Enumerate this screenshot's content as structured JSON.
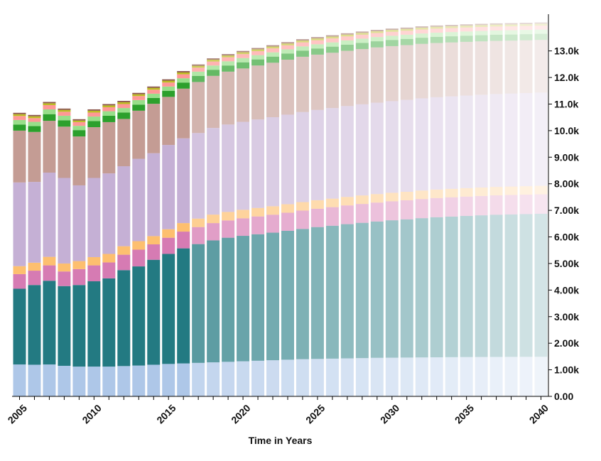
{
  "chart_data": {
    "type": "bar",
    "stacked": true,
    "xlabel": "Time in Years",
    "ylabel": "",
    "ylim": [
      0,
      14000
    ],
    "y_ticks": [
      0,
      1000,
      2000,
      3000,
      4000,
      5000,
      6000,
      7000,
      8000,
      9000,
      10000,
      11000,
      12000,
      13000
    ],
    "y_tick_labels": [
      "0.00",
      "1.00k",
      "2.00k",
      "3.00k",
      "4.00k",
      "5.00k",
      "6.00k",
      "7.00k",
      "8.00k",
      "9.00k",
      "10.0k",
      "11.0k",
      "12.0k",
      "13.0k"
    ],
    "x_tick_labels": [
      {
        "year": 2005,
        "label": "2005"
      },
      {
        "year": 2010,
        "label": "2010"
      },
      {
        "year": 2015,
        "label": "2015"
      },
      {
        "year": 2020,
        "label": "2020"
      },
      {
        "year": 2025,
        "label": "2025"
      },
      {
        "year": 2030,
        "label": "2030"
      },
      {
        "year": 2035,
        "label": "2035"
      },
      {
        "year": 2040,
        "label": "2040"
      }
    ],
    "grid": false,
    "legend": "none",
    "historical_last_year": 2016,
    "categories": [
      2005,
      2006,
      2007,
      2008,
      2009,
      2010,
      2011,
      2012,
      2013,
      2014,
      2015,
      2016,
      2017,
      2018,
      2019,
      2020,
      2021,
      2022,
      2023,
      2024,
      2025,
      2026,
      2027,
      2028,
      2029,
      2030,
      2031,
      2032,
      2033,
      2034,
      2035,
      2036,
      2037,
      2038,
      2039,
      2040
    ],
    "series": [
      {
        "color": "#aec7e8",
        "values": [
          1200,
          1190,
          1200,
          1150,
          1120,
          1120,
          1120,
          1140,
          1160,
          1190,
          1220,
          1240,
          1260,
          1280,
          1300,
          1320,
          1340,
          1360,
          1380,
          1400,
          1410,
          1420,
          1430,
          1440,
          1450,
          1455,
          1460,
          1465,
          1470,
          1475,
          1480,
          1482,
          1484,
          1486,
          1488,
          1490
        ]
      },
      {
        "color": "#237a82",
        "values": [
          2850,
          3000,
          3150,
          3000,
          3070,
          3210,
          3320,
          3610,
          3730,
          3950,
          4140,
          4330,
          4470,
          4590,
          4670,
          4720,
          4760,
          4800,
          4850,
          4900,
          4960,
          5000,
          5050,
          5090,
          5130,
          5170,
          5200,
          5240,
          5270,
          5290,
          5310,
          5330,
          5350,
          5360,
          5370,
          5380
        ]
      },
      {
        "color": "#d67bb3",
        "values": [
          550,
          540,
          580,
          550,
          600,
          600,
          600,
          580,
          630,
          580,
          610,
          630,
          640,
          650,
          650,
          660,
          670,
          675,
          680,
          690,
          690,
          700,
          705,
          710,
          712,
          715,
          718,
          720,
          722,
          724,
          726,
          728,
          729,
          730,
          731,
          732
        ]
      },
      {
        "color": "#fdbf6f",
        "values": [
          300,
          300,
          320,
          300,
          300,
          310,
          320,
          320,
          320,
          310,
          320,
          320,
          320,
          320,
          320,
          320,
          320,
          320,
          320,
          320,
          320,
          320,
          320,
          320,
          320,
          320,
          320,
          320,
          320,
          320,
          320,
          320,
          320,
          320,
          320,
          320
        ]
      },
      {
        "color": "#c5b0d5",
        "values": [
          3150,
          3040,
          3170,
          3220,
          2850,
          2980,
          3030,
          3010,
          3100,
          3120,
          3170,
          3190,
          3220,
          3260,
          3290,
          3310,
          3330,
          3350,
          3370,
          3390,
          3400,
          3410,
          3420,
          3430,
          3440,
          3450,
          3460,
          3470,
          3475,
          3480,
          3485,
          3490,
          3495,
          3500,
          3505,
          3510
        ]
      },
      {
        "color": "#c49c94",
        "values": [
          1950,
          1880,
          1950,
          1930,
          1840,
          1910,
          1930,
          1780,
          1810,
          1860,
          1810,
          1870,
          1920,
          1960,
          1990,
          2010,
          2030,
          2050,
          2070,
          2080,
          2080,
          2080,
          2080,
          2080,
          2080,
          2070,
          2060,
          2050,
          2040,
          2030,
          2020,
          2010,
          2000,
          1990,
          1985,
          1980
        ]
      },
      {
        "color": "#2ca02c",
        "values": [
          230,
          220,
          250,
          240,
          240,
          230,
          240,
          240,
          230,
          220,
          230,
          230,
          230,
          230,
          230,
          230,
          230,
          230,
          230,
          230,
          230,
          230,
          230,
          230,
          230,
          230,
          230,
          230,
          230,
          230,
          230,
          230,
          230,
          230,
          230,
          230
        ]
      },
      {
        "color": "#98df8a",
        "values": [
          170,
          160,
          180,
          170,
          160,
          170,
          170,
          170,
          170,
          160,
          160,
          160,
          160,
          160,
          160,
          160,
          160,
          160,
          160,
          160,
          160,
          160,
          160,
          160,
          160,
          160,
          160,
          160,
          160,
          160,
          160,
          160,
          160,
          160,
          160,
          160
        ]
      },
      {
        "color": "#ff9896",
        "values": [
          150,
          140,
          160,
          150,
          140,
          150,
          150,
          150,
          150,
          150,
          150,
          150,
          150,
          150,
          150,
          150,
          150,
          150,
          150,
          150,
          150,
          150,
          150,
          150,
          150,
          150,
          150,
          150,
          150,
          150,
          150,
          150,
          150,
          150,
          150,
          150
        ]
      },
      {
        "color": "#bcbd22",
        "values": [
          70,
          70,
          70,
          70,
          60,
          70,
          70,
          70,
          70,
          70,
          70,
          70,
          70,
          70,
          70,
          70,
          70,
          70,
          70,
          70,
          70,
          70,
          70,
          70,
          70,
          70,
          70,
          70,
          70,
          70,
          70,
          70,
          70,
          70,
          70,
          70
        ]
      },
      {
        "color": "#8c564b",
        "values": [
          50,
          50,
          50,
          50,
          50,
          50,
          50,
          50,
          50,
          50,
          50,
          50,
          50,
          50,
          50,
          50,
          50,
          50,
          50,
          50,
          50,
          50,
          50,
          50,
          50,
          50,
          50,
          50,
          50,
          50,
          50,
          50,
          50,
          50,
          50,
          50
        ]
      }
    ]
  }
}
